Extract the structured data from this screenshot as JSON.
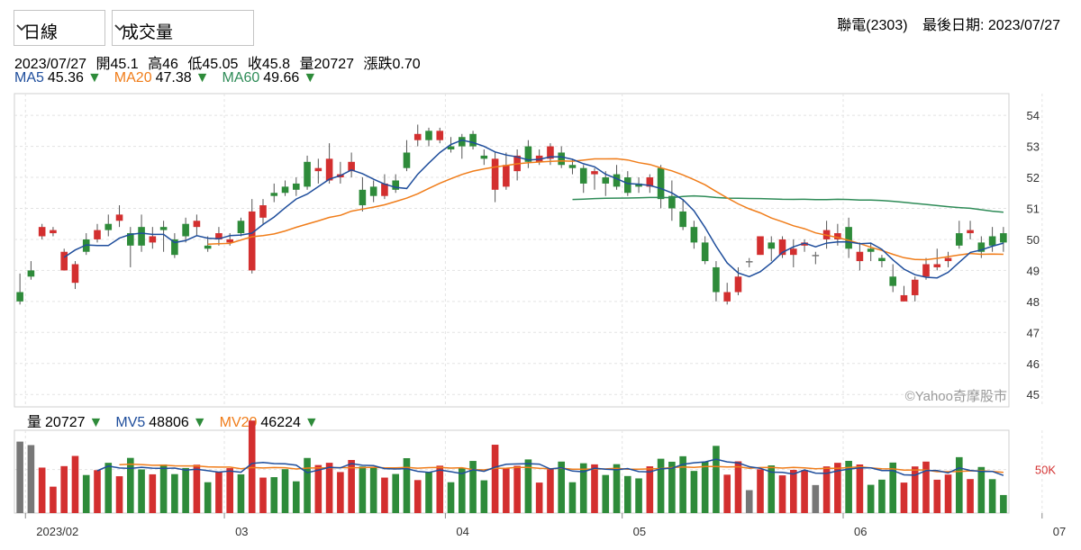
{
  "header": {
    "stock": "聯電(2303)",
    "last_date_label": "最後日期: 2023/07/27"
  },
  "controls": {
    "period": "日線",
    "indicator": "成交量"
  },
  "ohlc_info": {
    "date": "2023/07/27",
    "open": "開45.1",
    "high": "高46",
    "low": "低45.05",
    "close": "收45.8",
    "volume": "量20727",
    "change": "漲跌0.70"
  },
  "ma_info": [
    {
      "label": "MA5",
      "value": "45.36",
      "arrow": "▼",
      "color": "#1f4e9c"
    },
    {
      "label": "MA20",
      "value": "47.38",
      "arrow": "▼",
      "color": "#f07d1a"
    },
    {
      "label": "MA60",
      "value": "49.66",
      "arrow": "▼",
      "color": "#2e8b57"
    }
  ],
  "mv_info": [
    {
      "label": "量",
      "value": "20727",
      "arrow": "▼",
      "color": "#000000"
    },
    {
      "label": "MV5",
      "value": "48806",
      "arrow": "▼",
      "color": "#1f4e9c"
    },
    {
      "label": "MV20",
      "value": "46224",
      "arrow": "▼",
      "color": "#f07d1a"
    }
  ],
  "watermark": "©Yahoo奇摩股市",
  "colors": {
    "up": "#d32f2f",
    "down": "#2e8b3a",
    "flat": "#777777",
    "arrow": "#2e8b3a"
  },
  "chart_data": [
    {
      "type": "candlestick",
      "y_ticks": [
        45,
        46,
        47,
        48,
        49,
        50,
        51,
        52,
        53,
        54
      ],
      "ylim": [
        44.6,
        54.7
      ],
      "month_ticks": [
        {
          "label": "2023/02",
          "index": 1
        },
        {
          "label": "03",
          "index": 19
        },
        {
          "label": "04",
          "index": 39
        },
        {
          "label": "05",
          "index": 55
        },
        {
          "label": "06",
          "index": 75
        },
        {
          "label": "07",
          "index": 93
        }
      ],
      "ohlc": [
        [
          48.3,
          48.0,
          48.9,
          47.9
        ],
        [
          49.0,
          48.8,
          49.3,
          48.7
        ],
        [
          50.1,
          50.4,
          50.5,
          50.0
        ],
        [
          50.2,
          50.3,
          50.4,
          50.1
        ],
        [
          49.0,
          49.6,
          49.7,
          49.0
        ],
        [
          48.6,
          49.2,
          49.3,
          48.4
        ],
        [
          50.0,
          49.6,
          50.2,
          49.5
        ],
        [
          50.0,
          50.3,
          50.5,
          49.9
        ],
        [
          50.5,
          50.3,
          50.8,
          50.1
        ],
        [
          50.6,
          50.8,
          51.1,
          50.4
        ],
        [
          50.2,
          49.8,
          50.4,
          49.1
        ],
        [
          50.4,
          49.8,
          50.8,
          49.6
        ],
        [
          49.9,
          50.1,
          50.4,
          49.7
        ],
        [
          50.4,
          50.3,
          50.6,
          49.6
        ],
        [
          50.0,
          49.5,
          50.2,
          49.4
        ],
        [
          50.5,
          50.1,
          50.7,
          49.9
        ],
        [
          50.4,
          50.6,
          50.8,
          50.1
        ],
        [
          49.8,
          49.7,
          50.1,
          49.6
        ],
        [
          50.0,
          50.2,
          50.4,
          49.8
        ],
        [
          49.9,
          50.0,
          50.2,
          49.8
        ],
        [
          50.6,
          50.2,
          50.7,
          50.1
        ],
        [
          49.0,
          50.9,
          51.3,
          48.9
        ],
        [
          50.7,
          51.1,
          51.3,
          50.5
        ],
        [
          51.5,
          51.4,
          51.8,
          51.2
        ],
        [
          51.7,
          51.5,
          51.9,
          51.4
        ],
        [
          51.8,
          51.6,
          52.0,
          51.4
        ],
        [
          52.5,
          51.7,
          52.7,
          51.6
        ],
        [
          52.2,
          52.3,
          52.6,
          51.8
        ],
        [
          51.9,
          52.6,
          53.1,
          51.8
        ],
        [
          52.0,
          52.1,
          52.5,
          51.8
        ],
        [
          52.2,
          52.5,
          52.8,
          52.0
        ],
        [
          51.6,
          51.1,
          52.0,
          50.9
        ],
        [
          51.7,
          51.4,
          51.9,
          51.2
        ],
        [
          51.4,
          51.8,
          52.1,
          51.3
        ],
        [
          51.9,
          51.6,
          52.1,
          51.5
        ],
        [
          52.8,
          52.3,
          53.2,
          52.2
        ],
        [
          53.2,
          53.4,
          53.7,
          53.0
        ],
        [
          53.5,
          53.2,
          53.6,
          53.0
        ],
        [
          53.2,
          53.5,
          53.6,
          53.1
        ],
        [
          53.0,
          52.9,
          53.3,
          52.8
        ],
        [
          53.3,
          53.0,
          53.4,
          52.6
        ],
        [
          53.4,
          53.0,
          53.5,
          52.9
        ],
        [
          52.7,
          52.6,
          52.9,
          52.4
        ],
        [
          51.6,
          52.6,
          52.8,
          51.2
        ],
        [
          51.7,
          52.4,
          52.8,
          51.6
        ],
        [
          52.2,
          52.7,
          52.9,
          51.9
        ],
        [
          53.0,
          52.5,
          53.2,
          52.3
        ],
        [
          52.5,
          52.7,
          52.9,
          52.4
        ],
        [
          52.6,
          53.0,
          53.1,
          52.4
        ],
        [
          52.8,
          52.4,
          53.0,
          52.3
        ],
        [
          52.4,
          52.3,
          52.6,
          52.1
        ],
        [
          52.3,
          51.8,
          52.4,
          51.5
        ],
        [
          52.1,
          52.2,
          52.3,
          51.6
        ],
        [
          52.0,
          51.8,
          52.2,
          51.4
        ],
        [
          52.1,
          51.7,
          52.4,
          51.6
        ],
        [
          52.0,
          51.5,
          52.2,
          51.4
        ],
        [
          51.8,
          51.7,
          52.0,
          51.5
        ],
        [
          51.7,
          52.0,
          52.1,
          51.5
        ],
        [
          52.3,
          51.3,
          52.4,
          51.0
        ],
        [
          51.4,
          51.0,
          51.9,
          50.6
        ],
        [
          50.9,
          50.4,
          51.3,
          50.3
        ],
        [
          50.4,
          49.9,
          50.6,
          49.7
        ],
        [
          49.9,
          49.3,
          50.1,
          49.2
        ],
        [
          49.1,
          48.3,
          49.3,
          48.0
        ],
        [
          48.0,
          48.3,
          48.6,
          47.9
        ],
        [
          48.3,
          48.8,
          49.1,
          48.2
        ],
        [
          49.3,
          49.3,
          49.4,
          49.1
        ],
        [
          49.5,
          50.1,
          50.1,
          49.5
        ],
        [
          49.9,
          49.7,
          50.1,
          49.3
        ],
        [
          49.5,
          50.0,
          50.1,
          49.4
        ],
        [
          49.5,
          49.7,
          50.0,
          49.1
        ],
        [
          49.8,
          49.9,
          50.0,
          49.6
        ],
        [
          49.5,
          49.5,
          49.6,
          49.2
        ],
        [
          50.0,
          50.3,
          50.6,
          49.7
        ],
        [
          50.0,
          50.2,
          50.5,
          49.8
        ],
        [
          50.4,
          49.7,
          50.7,
          49.4
        ],
        [
          49.3,
          49.6,
          49.9,
          49.0
        ],
        [
          49.7,
          49.6,
          49.9,
          49.3
        ],
        [
          49.4,
          49.3,
          49.5,
          49.1
        ],
        [
          48.8,
          48.5,
          49.2,
          48.3
        ],
        [
          48.0,
          48.2,
          48.5,
          48.0
        ],
        [
          48.2,
          48.7,
          48.8,
          48.0
        ],
        [
          48.8,
          49.2,
          49.4,
          48.7
        ],
        [
          49.1,
          49.2,
          49.7,
          49.0
        ],
        [
          49.3,
          49.4,
          49.6,
          49.1
        ],
        [
          50.2,
          49.8,
          50.6,
          49.7
        ],
        [
          50.2,
          50.3,
          50.6,
          50.0
        ],
        [
          49.9,
          49.6,
          50.1,
          49.4
        ],
        [
          50.1,
          49.8,
          50.4,
          49.6
        ],
        [
          50.2,
          49.9,
          50.4,
          49.6
        ]
      ],
      "ma5": [],
      "ma20": [],
      "ma60": []
    },
    {
      "type": "bar",
      "y_ticks": [
        50000
      ],
      "y_tick_labels": [
        "50K"
      ],
      "ylim": [
        0,
        95000
      ],
      "volume": [],
      "mv5": [],
      "mv20": []
    }
  ]
}
